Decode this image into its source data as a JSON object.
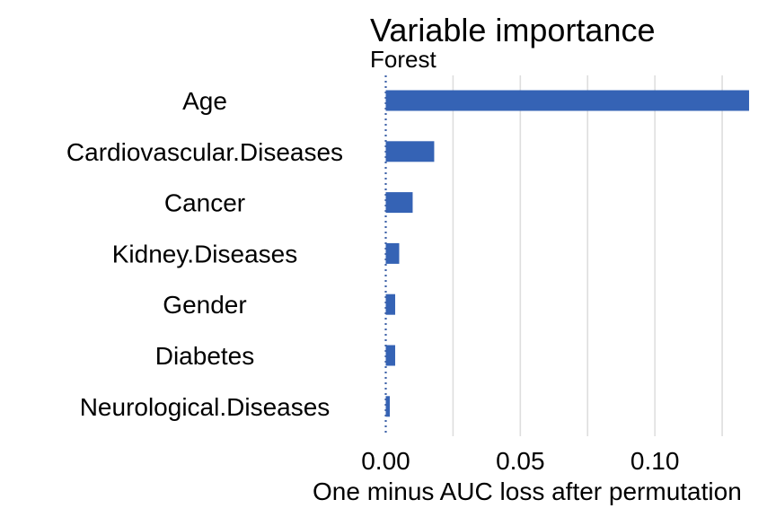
{
  "chart_data": {
    "type": "bar",
    "orientation": "horizontal",
    "title": "Variable importance",
    "subtitle": "Forest",
    "xlabel": "One minus AUC loss after permutation",
    "ylabel": "",
    "categories": [
      "Age",
      "Cardiovascular.Diseases",
      "Cancer",
      "Kidney.Diseases",
      "Gender",
      "Diabetes",
      "Neurological.Diseases"
    ],
    "values": [
      0.135,
      0.018,
      0.01,
      0.005,
      0.0035,
      0.0035,
      0.0015
    ],
    "xlim": [
      -0.0015,
      0.145
    ],
    "xticks": [
      0.0,
      0.05,
      0.1
    ],
    "xtick_labels": [
      "0.00",
      "0.05",
      "0.10"
    ],
    "baseline": 0.0,
    "grid": "vertical",
    "legend": "none",
    "colors": {
      "bar": "#3563B5",
      "grid": "#DEDEDE",
      "baseline": "#3F63A8"
    }
  }
}
